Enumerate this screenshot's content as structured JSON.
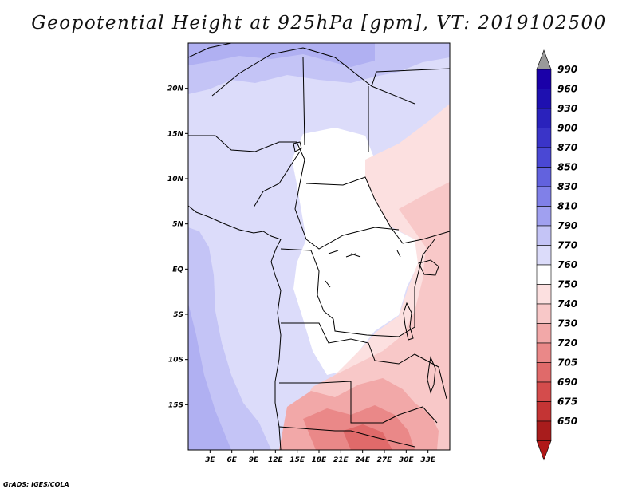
{
  "title": "Geopotential Height at 925hPa [gpm], VT: 2019102500",
  "credit": "GrADS: IGES/COLA",
  "map": {
    "lon_range": [
      0,
      36
    ],
    "lat_range": [
      -20,
      25
    ],
    "lat_ticks": [
      {
        "value": 20,
        "label": "20N"
      },
      {
        "value": 15,
        "label": "15N"
      },
      {
        "value": 10,
        "label": "10N"
      },
      {
        "value": 5,
        "label": "5N"
      },
      {
        "value": 0,
        "label": "EQ"
      },
      {
        "value": -5,
        "label": "5S"
      },
      {
        "value": -10,
        "label": "10S"
      },
      {
        "value": -15,
        "label": "15S"
      }
    ],
    "lon_ticks": [
      {
        "value": 3,
        "label": "3E"
      },
      {
        "value": 6,
        "label": "6E"
      },
      {
        "value": 9,
        "label": "9E"
      },
      {
        "value": 12,
        "label": "12E"
      },
      {
        "value": 15,
        "label": "15E"
      },
      {
        "value": 18,
        "label": "18E"
      },
      {
        "value": 21,
        "label": "21E"
      },
      {
        "value": 24,
        "label": "24E"
      },
      {
        "value": 27,
        "label": "27E"
      },
      {
        "value": 30,
        "label": "30E"
      },
      {
        "value": 33,
        "label": "33E"
      }
    ]
  },
  "colorbar": {
    "levels": [
      {
        "label": "990",
        "color": "#1a00a8"
      },
      {
        "label": "960",
        "color": "#1e10b0"
      },
      {
        "label": "930",
        "color": "#2a22bc"
      },
      {
        "label": "900",
        "color": "#3a34c8"
      },
      {
        "label": "870",
        "color": "#4a48d4"
      },
      {
        "label": "850",
        "color": "#6262de"
      },
      {
        "label": "830",
        "color": "#8080e8"
      },
      {
        "label": "810",
        "color": "#a0a0f0"
      },
      {
        "label": "790",
        "color": "#c4c4f6"
      },
      {
        "label": "770",
        "color": "#dcdcfa"
      },
      {
        "label": "760",
        "color": "#ffffff"
      },
      {
        "label": "750",
        "color": "#fce0e0"
      },
      {
        "label": "740",
        "color": "#f8c8c8"
      },
      {
        "label": "730",
        "color": "#f2a8a8"
      },
      {
        "label": "720",
        "color": "#ea8888"
      },
      {
        "label": "705",
        "color": "#e06a6a"
      },
      {
        "label": "690",
        "color": "#d44c4c"
      },
      {
        "label": "675",
        "color": "#c43434"
      },
      {
        "label": "650",
        "color": "#a81c1c"
      }
    ],
    "top_arrow_color": "#9a9a9a",
    "bottom_arrow_color": "#b01818"
  }
}
